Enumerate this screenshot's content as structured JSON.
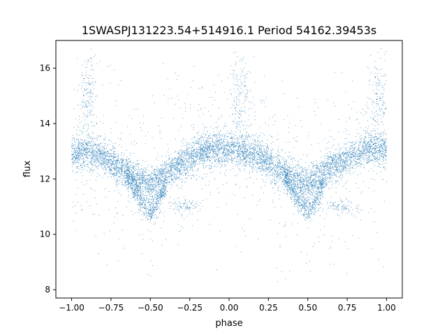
{
  "chart_data": {
    "type": "scatter",
    "title": "1SWASPJ131223.54+514916.1 Period 54162.39453s",
    "xlabel": "phase",
    "ylabel": "flux",
    "xlim": [
      -1.1,
      1.1
    ],
    "ylim": [
      7.7,
      17.0
    ],
    "x_ticks": [
      -1.0,
      -0.75,
      -0.5,
      -0.25,
      0.0,
      0.25,
      0.5,
      0.75,
      1.0
    ],
    "x_tick_labels": [
      "−1.00",
      "−0.75",
      "−0.50",
      "−0.25",
      "0.00",
      "0.25",
      "0.50",
      "0.75",
      "1.00"
    ],
    "y_ticks": [
      8,
      10,
      12,
      14,
      16
    ],
    "y_tick_labels": [
      "8",
      "10",
      "12",
      "14",
      "16"
    ],
    "grid": false,
    "legend": "none",
    "series_color": "#1f77b4",
    "main_curve": {
      "phase": [
        -1.0,
        -0.9,
        -0.8,
        -0.7,
        -0.6,
        -0.5,
        -0.4,
        -0.3,
        -0.2,
        -0.1,
        0.0,
        0.1,
        0.2,
        0.3,
        0.4,
        0.5,
        0.6,
        0.7,
        0.8,
        0.9,
        1.0
      ],
      "flux": [
        12.9,
        13.0,
        12.8,
        12.4,
        12.0,
        11.8,
        12.2,
        12.6,
        12.9,
        13.1,
        13.1,
        13.0,
        12.8,
        12.4,
        12.0,
        11.8,
        12.2,
        12.6,
        12.9,
        13.1,
        13.1
      ]
    },
    "secondary_dip": {
      "phase": [
        -0.65,
        -0.6,
        -0.55,
        -0.5,
        -0.45,
        -0.4,
        0.35,
        0.4,
        0.45,
        0.5,
        0.55,
        0.6
      ],
      "flux": [
        12.2,
        11.6,
        11.1,
        10.8,
        11.2,
        11.8,
        12.2,
        11.6,
        11.1,
        10.8,
        11.2,
        11.8
      ]
    },
    "band_half_width": 0.55,
    "scatter_flux_range": [
      8.0,
      16.5
    ],
    "outlier_clusters": [
      {
        "phase": -0.9,
        "flux": 15.2
      },
      {
        "phase": 0.07,
        "flux": 15.0
      },
      {
        "phase": 0.95,
        "flux": 15.0
      },
      {
        "phase": -0.28,
        "flux": 11.0
      },
      {
        "phase": 0.72,
        "flux": 11.0
      }
    ]
  }
}
